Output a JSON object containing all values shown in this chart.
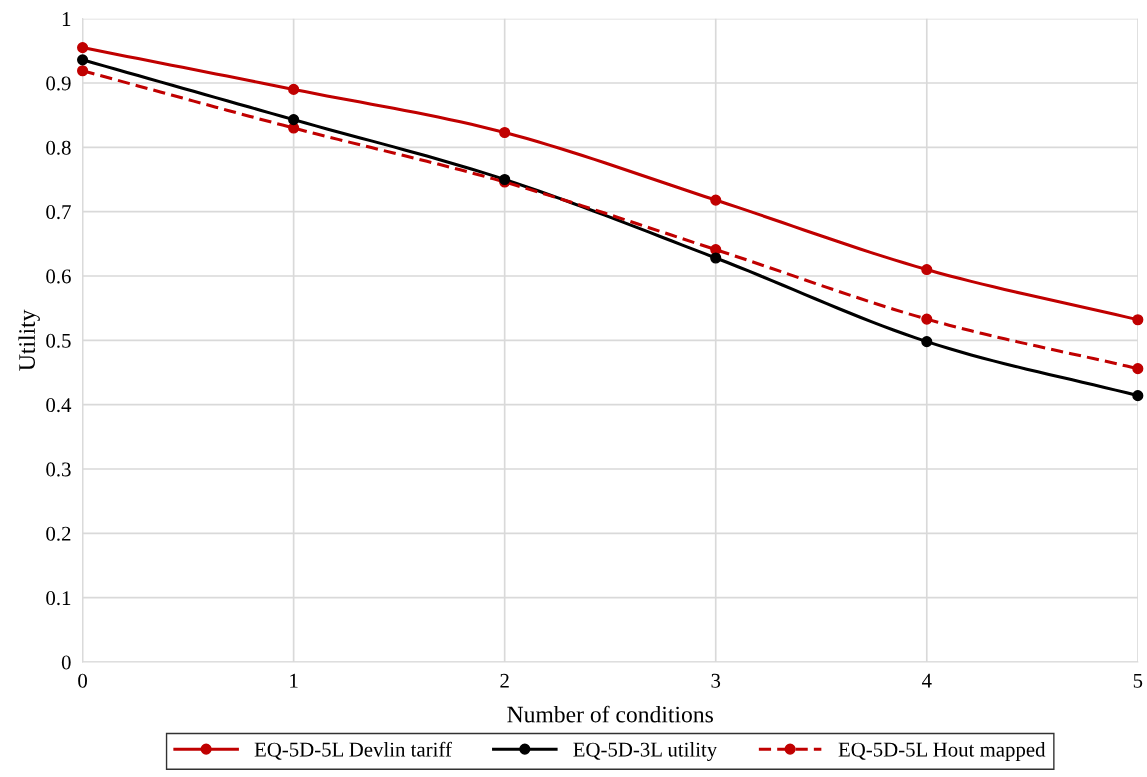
{
  "chart_data": {
    "type": "line",
    "xlabel": "Number of conditions",
    "ylabel": "Utility",
    "x": [
      0,
      1,
      2,
      3,
      4,
      5
    ],
    "series": [
      {
        "name": "EQ-5D-5L Devlin tariff",
        "color": "#c00000",
        "values": [
          0.955,
          0.89,
          0.823,
          0.718,
          0.61,
          0.532
        ],
        "line_style": "solid"
      },
      {
        "name": "EQ-5D-3L utility",
        "color": "#000000",
        "values": [
          0.936,
          0.843,
          0.75,
          0.628,
          0.498,
          0.414
        ],
        "line_style": "solid"
      },
      {
        "name": "EQ-5D-5L Hout mapped",
        "color": "#c00000",
        "values": [
          0.919,
          0.83,
          0.746,
          0.641,
          0.533,
          0.456
        ],
        "line_style": "dashed"
      }
    ],
    "xlim": [
      0,
      5
    ],
    "xticks": [
      0,
      1,
      2,
      3,
      4,
      5
    ],
    "ylim": [
      0,
      1
    ],
    "yticks": [
      0,
      0.1,
      0.2,
      0.3,
      0.4,
      0.5,
      0.6,
      0.7,
      0.8,
      0.9,
      1
    ],
    "grid": true,
    "legend": "bottom",
    "marker": "circle"
  }
}
